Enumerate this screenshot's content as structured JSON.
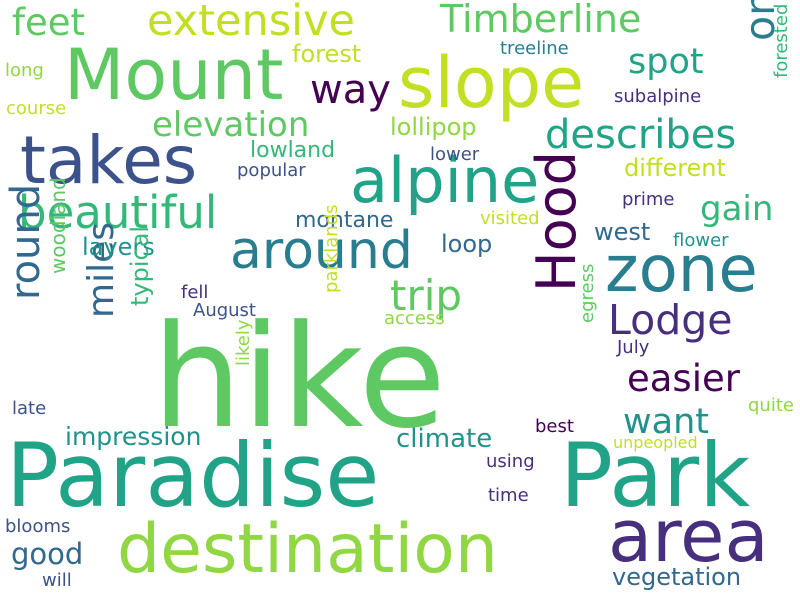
{
  "words": {
    "hike": "hike",
    "paradise": "Paradise",
    "park": "Park",
    "destination": "destination",
    "area": "area",
    "slope": "slope",
    "mount": "Mount",
    "alpine": "alpine",
    "takes": "takes",
    "zone": "zone",
    "hood": "Hood",
    "extensive": "extensive",
    "timberline": "Timberline",
    "around": "around",
    "beautiful": "beautiful",
    "lodge": "Lodge",
    "describes": "describes",
    "feet": "feet",
    "trip": "trip",
    "one": "one",
    "way": "way",
    "elevation": "elevation",
    "easier": "easier",
    "round": "round",
    "miles": "miles",
    "spot": "spot",
    "gain": "gain",
    "want": "want",
    "impression": "impression",
    "climate": "climate",
    "good": "good",
    "vegetation": "vegetation",
    "different": "different",
    "lollipop": "lollipop",
    "lowland": "lowland",
    "montane": "montane",
    "layers": "layers",
    "loop": "loop",
    "forest": "forest",
    "typical": "typical",
    "woodland": "woodland",
    "west": "west",
    "treeline": "treeline",
    "subalpine": "subalpine",
    "forested": "forested",
    "long": "long",
    "course": "course",
    "lower": "lower",
    "popular": "popular",
    "prime": "prime",
    "visited": "visited",
    "flower": "flower",
    "fell": "fell",
    "august": "August",
    "access": "access",
    "parklands": "parklands",
    "likely": "likely",
    "egress": "egress",
    "july": "July",
    "late": "late",
    "quite": "quite",
    "best": "best",
    "unpeopled": "unpeopled",
    "using": "using",
    "time": "time",
    "blooms": "blooms",
    "will": "will"
  },
  "colors": {
    "purple_dark": "#440154",
    "purple": "#472f7d",
    "indigo": "#3b528b",
    "blue": "#31688e",
    "teal_blue": "#287d8e",
    "teal": "#21918c",
    "green_teal": "#20a386",
    "green": "#35b779",
    "light_green": "#5ec962",
    "lime": "#90d743",
    "yellow_green": "#c2df23",
    "yellow": "#fde725"
  }
}
